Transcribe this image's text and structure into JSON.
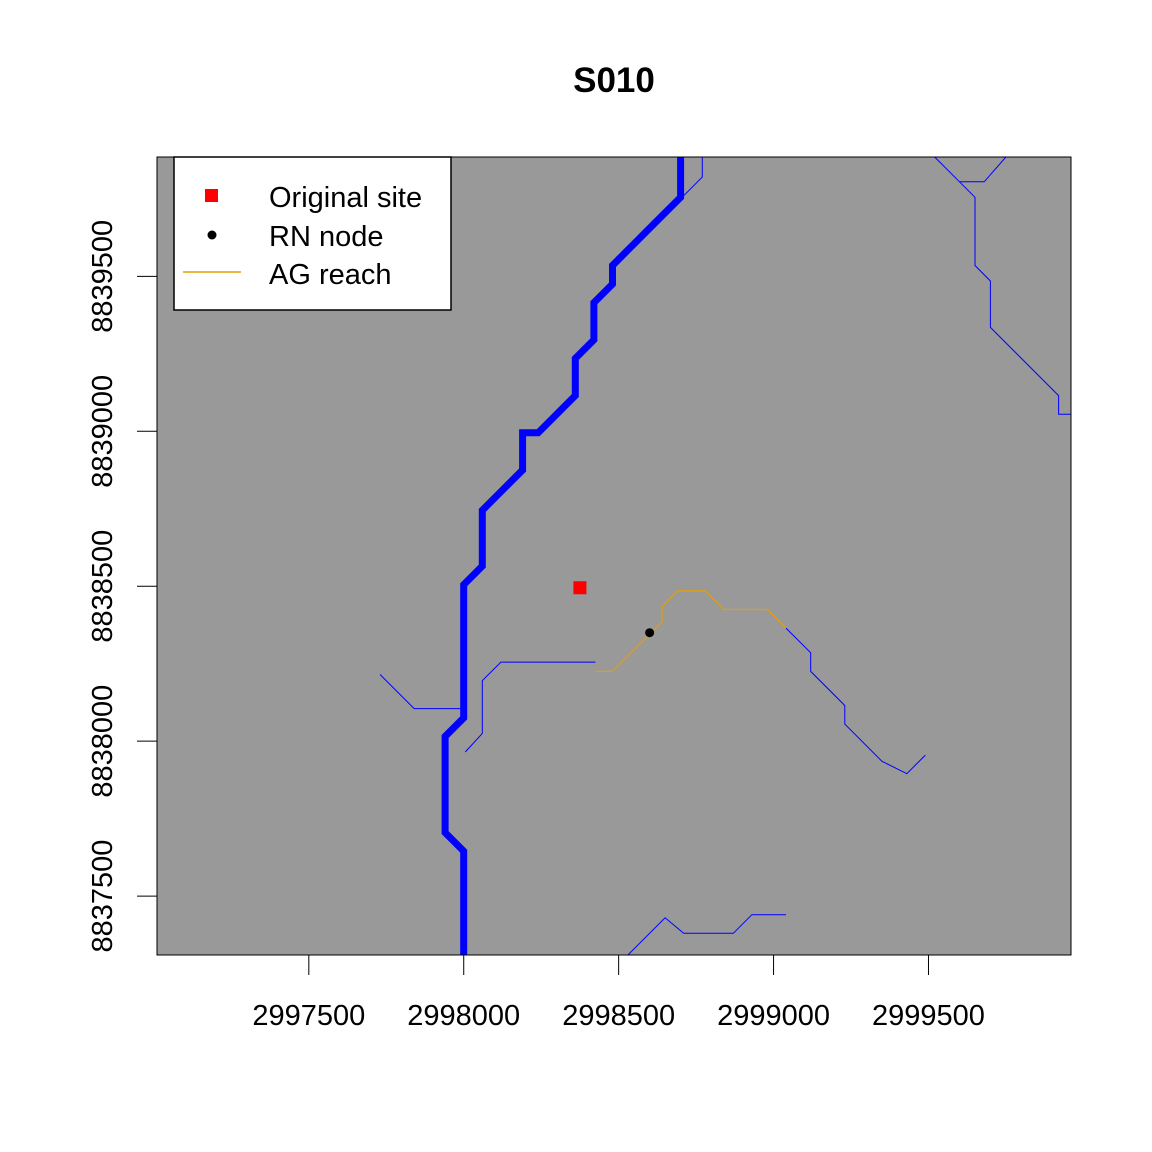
{
  "title": "S010",
  "chart_data": {
    "type": "map",
    "title": "S010",
    "xlim": [
      2997010,
      2999960
    ],
    "ylim": [
      8837310,
      8839885
    ],
    "x_ticks": [
      2997500,
      2998000,
      2998500,
      2999000,
      2999500
    ],
    "x_tick_labels": [
      "2997500",
      "2998000",
      "2998500",
      "2999000",
      "2999500"
    ],
    "y_ticks": [
      8837500,
      8838000,
      8838500,
      8839000,
      8839500
    ],
    "y_tick_labels": [
      "8837500",
      "8838000",
      "8838500",
      "8839000",
      "8839500"
    ],
    "background_color": "#999999",
    "legend": {
      "position": "top-left",
      "items": [
        {
          "label": "Original site",
          "symbol": "square",
          "color": "#ff0000"
        },
        {
          "label": "RN node",
          "symbol": "dot",
          "color": "#000000"
        },
        {
          "label": "AG reach",
          "symbol": "line",
          "color": "#e69f00"
        }
      ]
    },
    "original_site": {
      "x": 2998375,
      "y": 8838495,
      "color": "#ff0000"
    },
    "rn_node": {
      "x": 2998600,
      "y": 8838350,
      "color": "#000000"
    },
    "ag_reach": {
      "color": "#e69f00",
      "points": [
        [
          2998425,
          8838225
        ],
        [
          2998480,
          8838225
        ],
        [
          2998600,
          8838345
        ],
        [
          2998640,
          8838385
        ],
        [
          2998640,
          8838435
        ],
        [
          2998690,
          8838485
        ],
        [
          2998780,
          8838485
        ],
        [
          2998840,
          8838425
        ],
        [
          2998980,
          8838425
        ],
        [
          2999040,
          8838365
        ]
      ]
    },
    "main_river": {
      "color": "#0000ff",
      "points": [
        [
          2998700,
          8839885
        ],
        [
          2998700,
          8839755
        ],
        [
          2998640,
          8839695
        ],
        [
          2998580,
          8839635
        ],
        [
          2998520,
          8839575
        ],
        [
          2998480,
          8839535
        ],
        [
          2998480,
          8839475
        ],
        [
          2998420,
          8839415
        ],
        [
          2998420,
          8839295
        ],
        [
          2998360,
          8839235
        ],
        [
          2998360,
          8839115
        ],
        [
          2998290,
          8839045
        ],
        [
          2998240,
          8838995
        ],
        [
          2998190,
          8838995
        ],
        [
          2998190,
          8838875
        ],
        [
          2998120,
          8838805
        ],
        [
          2998060,
          8838745
        ],
        [
          2998060,
          8838565
        ],
        [
          2998000,
          8838505
        ],
        [
          2998000,
          8838075
        ],
        [
          2997940,
          8838015
        ],
        [
          2997940,
          8837705
        ],
        [
          2998000,
          8837645
        ],
        [
          2998000,
          8837310
        ]
      ]
    },
    "streams": [
      {
        "color": "#0000ff",
        "points": [
          [
            2998770,
            8839885
          ],
          [
            2998770,
            8839820
          ],
          [
            2998710,
            8839760
          ]
        ]
      },
      {
        "color": "#0000ff",
        "points": [
          [
            2999520,
            8839885
          ],
          [
            2999600,
            8839805
          ],
          [
            2999680,
            8839805
          ],
          [
            2999750,
            8839885
          ]
        ]
      },
      {
        "color": "#0000ff",
        "points": [
          [
            2999600,
            8839805
          ],
          [
            2999650,
            8839755
          ],
          [
            2999650,
            8839535
          ],
          [
            2999700,
            8839485
          ],
          [
            2999700,
            8839335
          ],
          [
            2999860,
            8839175
          ],
          [
            2999920,
            8839115
          ],
          [
            2999920,
            8839055
          ],
          [
            2999960,
            8839055
          ]
        ]
      },
      {
        "color": "#0000ff",
        "points": [
          [
            2997730,
            8838215
          ],
          [
            2997840,
            8838105
          ],
          [
            2997990,
            8838105
          ]
        ]
      },
      {
        "color": "#0000ff",
        "points": [
          [
            2998005,
            8837965
          ],
          [
            2998060,
            8838025
          ],
          [
            2998060,
            8838195
          ],
          [
            2998120,
            8838255
          ],
          [
            2998425,
            8838255
          ]
        ]
      },
      {
        "color": "#0000ff",
        "points": [
          [
            2999040,
            8838365
          ],
          [
            2999120,
            8838285
          ],
          [
            2999120,
            8838225
          ],
          [
            2999230,
            8838115
          ],
          [
            2999230,
            8838055
          ],
          [
            2999350,
            8837935
          ],
          [
            2999430,
            8837895
          ],
          [
            2999490,
            8837955
          ]
        ]
      },
      {
        "color": "#0000ff",
        "points": [
          [
            2998530,
            8837310
          ],
          [
            2998650,
            8837430
          ],
          [
            2998710,
            8837380
          ],
          [
            2998870,
            8837380
          ],
          [
            2998930,
            8837440
          ],
          [
            2999040,
            8837440
          ]
        ]
      }
    ]
  }
}
